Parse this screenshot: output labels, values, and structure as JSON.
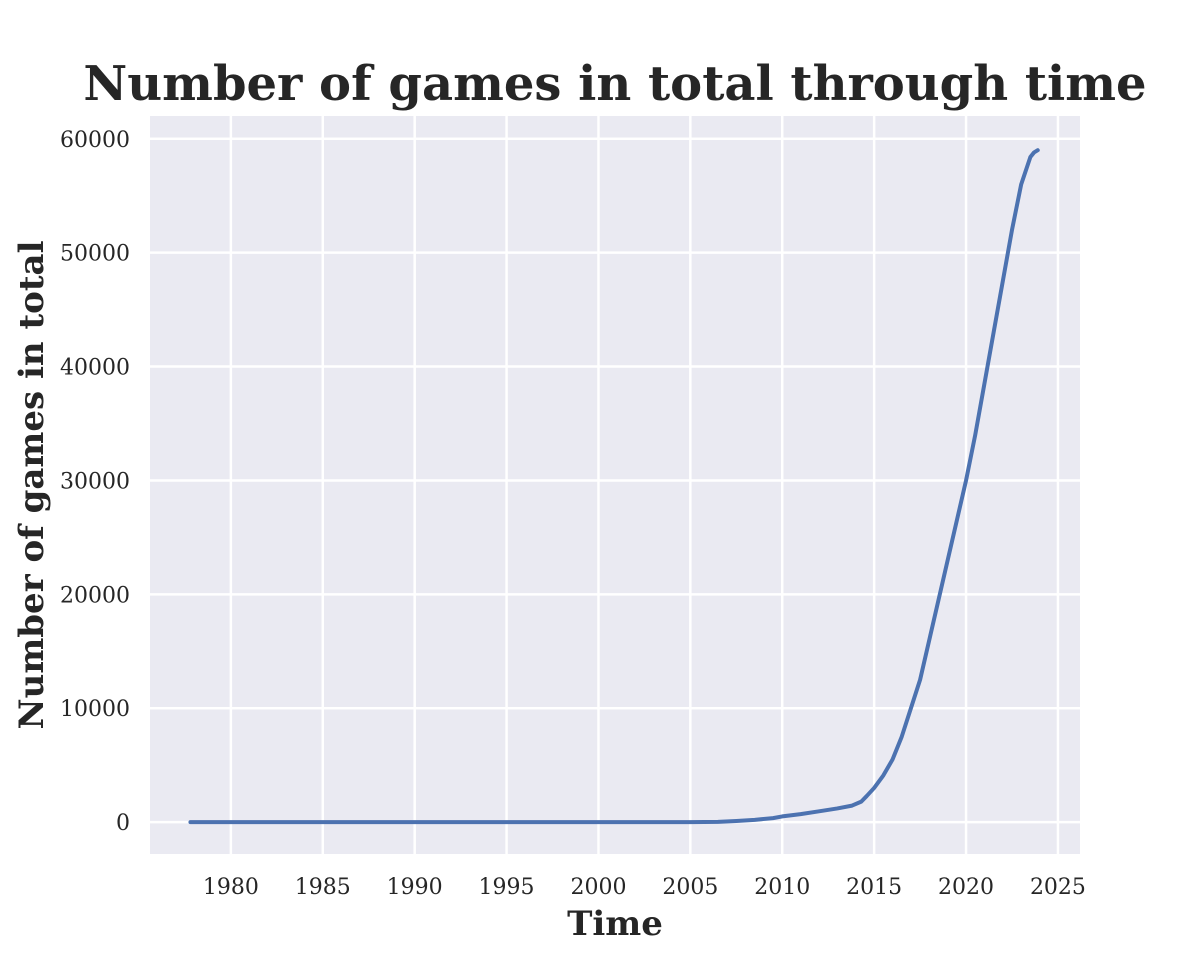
{
  "chart_data": {
    "type": "line",
    "title": "Number of games in total through time",
    "xlabel": "Time",
    "ylabel": "Number of games in total",
    "xlim": [
      1975.6,
      2026.2
    ],
    "ylim": [
      -2800,
      62000
    ],
    "xticks": [
      1980,
      1985,
      1990,
      1995,
      2000,
      2005,
      2010,
      2015,
      2020,
      2025
    ],
    "yticks": [
      0,
      10000,
      20000,
      30000,
      40000,
      50000,
      60000
    ],
    "grid": true,
    "legend": "none",
    "colors": {
      "line": "#4c72b0",
      "background": "#eaeaf2",
      "grid": "#ffffff"
    },
    "series": [
      {
        "x": [
          1977.8,
          1985,
          1995,
          2005,
          2006.5,
          2007.5,
          2008.5,
          2009.5,
          2010,
          2011,
          2012,
          2013,
          2013.8,
          2014.3,
          2014.6,
          2015.0,
          2015.5,
          2016.0,
          2016.5,
          2017.0,
          2017.5,
          2018.0,
          2018.5,
          2019.0,
          2019.5,
          2020.0,
          2020.5,
          2021.0,
          2021.5,
          2022.0,
          2022.5,
          2023.0,
          2023.5,
          2023.7,
          2023.9
        ],
        "y": [
          0,
          0,
          0,
          0,
          20,
          100,
          200,
          350,
          500,
          700,
          950,
          1200,
          1450,
          1800,
          2300,
          3000,
          4100,
          5500,
          7500,
          10000,
          12500,
          16000,
          19500,
          23000,
          26500,
          30000,
          34000,
          38500,
          43000,
          47500,
          52000,
          56000,
          58400,
          58800,
          59000
        ]
      }
    ]
  }
}
